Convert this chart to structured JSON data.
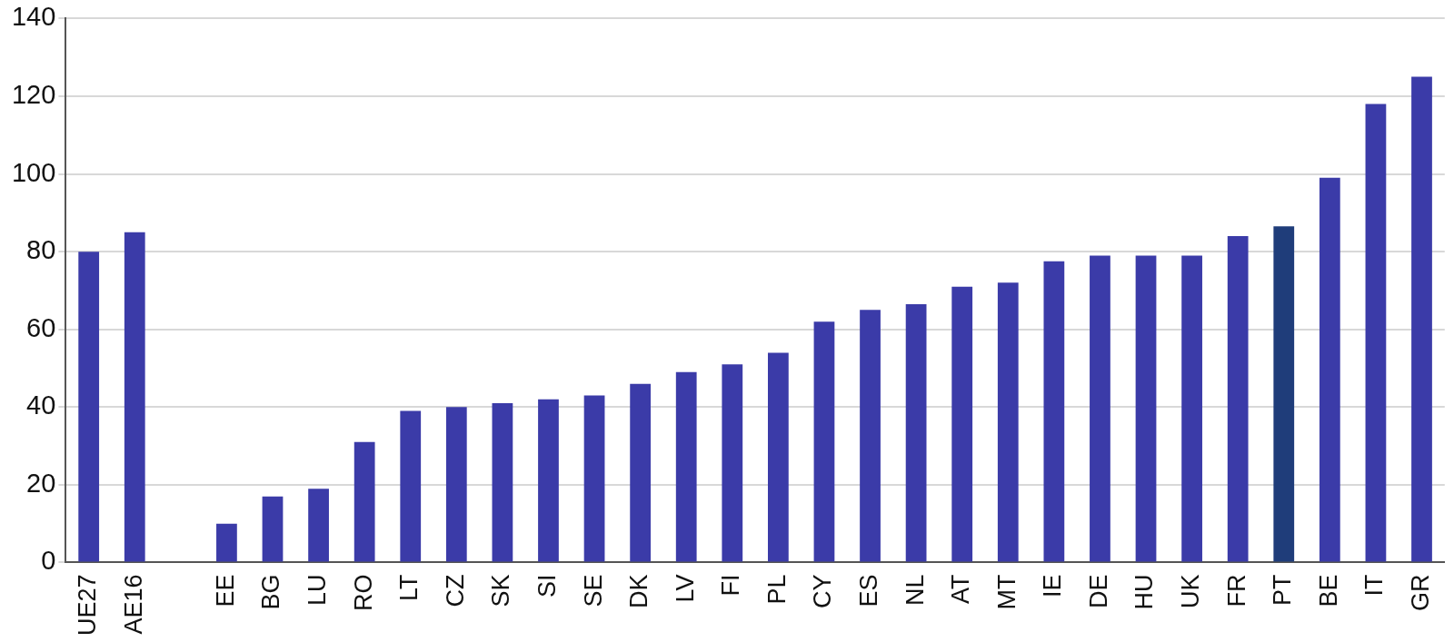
{
  "chart_data": {
    "type": "bar",
    "categories": [
      "UE27",
      "AE16",
      null,
      "EE",
      "BG",
      "LU",
      "RO",
      "LT",
      "CZ",
      "SK",
      "SI",
      "SE",
      "DK",
      "LV",
      "FI",
      "PL",
      "CY",
      "ES",
      "NL",
      "AT",
      "MT",
      "IE",
      "DE",
      "HU",
      "UK",
      "FR",
      "PT",
      "BE",
      "IT",
      "GR"
    ],
    "values": [
      80,
      85,
      null,
      10,
      17,
      19,
      31,
      39,
      40,
      41,
      42,
      43,
      46,
      49,
      51,
      54,
      62,
      65,
      66.5,
      71,
      72,
      77.5,
      79,
      79,
      79,
      84,
      86.5,
      99,
      118,
      125
    ],
    "colors": [
      "#3b3ba8",
      "#3b3ba8",
      "#3b3ba8",
      "#3b3ba8",
      "#3b3ba8",
      "#3b3ba8",
      "#3b3ba8",
      "#3b3ba8",
      "#3b3ba8",
      "#3b3ba8",
      "#3b3ba8",
      "#3b3ba8",
      "#3b3ba8",
      "#3b3ba8",
      "#3b3ba8",
      "#3b3ba8",
      "#3b3ba8",
      "#3b3ba8",
      "#3b3ba8",
      "#3b3ba8",
      "#3b3ba8",
      "#3b3ba8",
      "#3b3ba8",
      "#3b3ba8",
      "#3b3ba8",
      "#3b3ba8",
      "#1f3d7a",
      "#3b3ba8",
      "#3b3ba8",
      "#3b3ba8"
    ],
    "ylim": [
      0,
      140
    ],
    "yticks": [
      0,
      20,
      40,
      60,
      80,
      100,
      120,
      140
    ],
    "grid": "y",
    "legend": false
  }
}
